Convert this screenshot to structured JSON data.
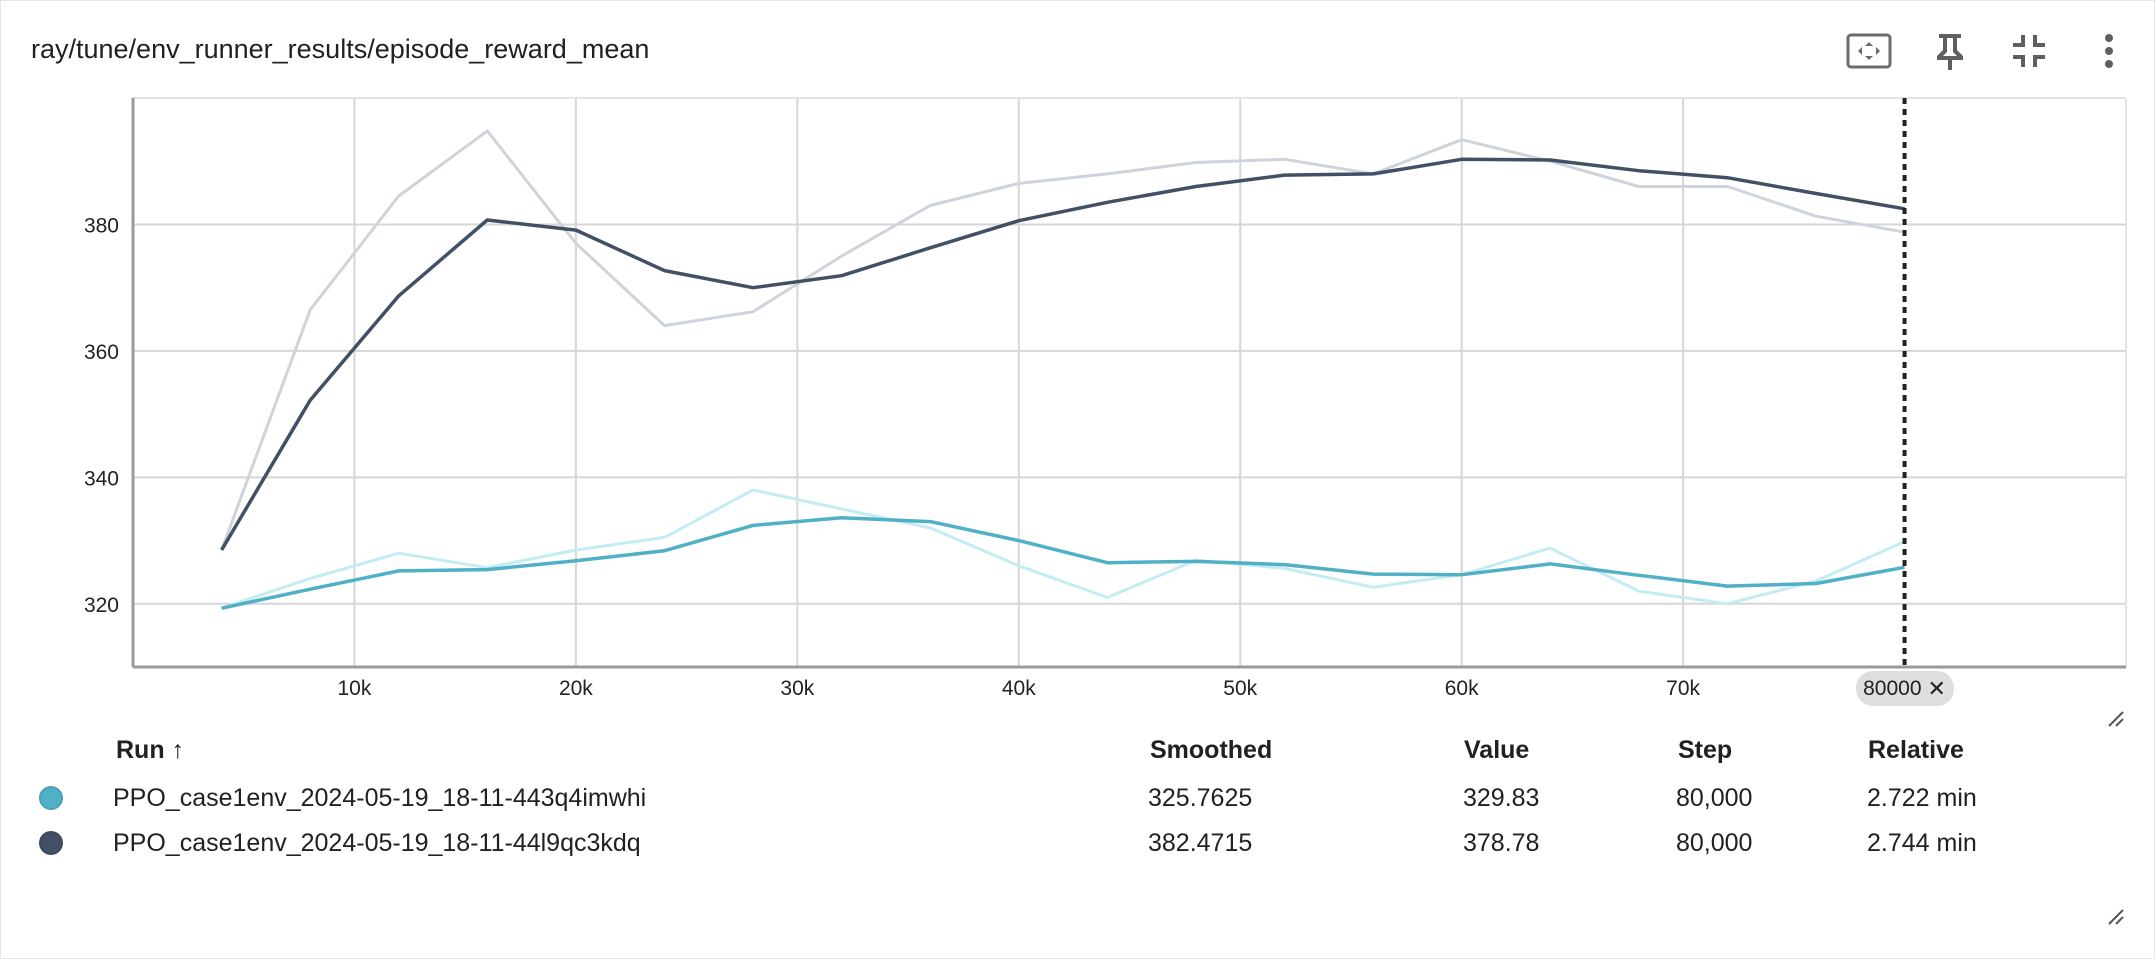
{
  "card": {
    "title": "ray/tune/env_runner_results/episode_reward_mean",
    "toolbar": {
      "icons": [
        "fit-domain-icon",
        "pin-icon",
        "collapse-icon",
        "more-vert-icon"
      ]
    }
  },
  "chart_data": {
    "type": "line",
    "xlim": [
      0,
      90000
    ],
    "ylim": [
      310,
      400
    ],
    "x_ticks": [
      "10k",
      "20k",
      "30k",
      "40k",
      "50k",
      "60k",
      "70k"
    ],
    "y_ticks": [
      "320",
      "340",
      "360",
      "380"
    ],
    "grid": true,
    "cursor_step": 80000,
    "series": [
      {
        "color": "#4fb0c6",
        "raw_color": "#c3ecf3",
        "x": [
          4000,
          8000,
          12000,
          16000,
          20000,
          24000,
          28000,
          32000,
          36000,
          40000,
          44000,
          48000,
          52000,
          56000,
          60000,
          64000,
          68000,
          72000,
          76000,
          80000
        ],
        "raw": [
          319.3,
          324.0,
          328.0,
          325.7,
          328.5,
          330.5,
          338.0,
          335.0,
          332.0,
          326.0,
          321.0,
          326.9,
          325.6,
          322.6,
          324.6,
          328.8,
          322.0,
          320.0,
          323.6,
          329.83
        ],
        "smoothed": [
          319.3,
          322.3,
          325.2,
          325.4,
          326.8,
          328.4,
          332.4,
          333.6,
          333.0,
          330.0,
          326.5,
          326.7,
          326.2,
          324.7,
          324.6,
          326.3,
          324.5,
          322.8,
          323.2,
          325.7625
        ]
      },
      {
        "color": "#425066",
        "raw_color": "#cfd3db",
        "x": [
          4000,
          8000,
          12000,
          16000,
          20000,
          24000,
          28000,
          32000,
          36000,
          40000,
          44000,
          48000,
          52000,
          56000,
          60000,
          64000,
          68000,
          72000,
          76000,
          80000
        ],
        "raw": [
          328.5,
          366.5,
          384.5,
          394.8,
          377.0,
          364.0,
          366.2,
          375.0,
          383.0,
          386.5,
          388.0,
          389.8,
          390.3,
          388.0,
          393.4,
          390.0,
          386.0,
          386.0,
          381.3,
          378.78
        ],
        "smoothed": [
          328.5,
          352.2,
          368.7,
          380.7,
          379.1,
          372.7,
          370.0,
          371.9,
          376.3,
          380.6,
          383.5,
          386.0,
          387.8,
          388.0,
          390.3,
          390.2,
          388.5,
          387.4,
          384.9,
          382.4715
        ]
      }
    ]
  },
  "legend_table": {
    "headers": {
      "run": "Run",
      "sort_indicator": "↑",
      "smoothed": "Smoothed",
      "value": "Value",
      "step": "Step",
      "relative": "Relative"
    },
    "rows": [
      {
        "color": "#4fb0c6",
        "run": "PPO_case1env_2024-05-19_18-11-443q4imwhi",
        "smoothed": "325.7625",
        "value": "329.83",
        "step": "80,000",
        "relative": "2.722 min"
      },
      {
        "color": "#425066",
        "run": "PPO_case1env_2024-05-19_18-11-44l9qc3kdq",
        "smoothed": "382.4715",
        "value": "378.78",
        "step": "80,000",
        "relative": "2.744 min"
      }
    ]
  },
  "cursor_chip": {
    "label": "80000",
    "close_glyph": "✕"
  }
}
